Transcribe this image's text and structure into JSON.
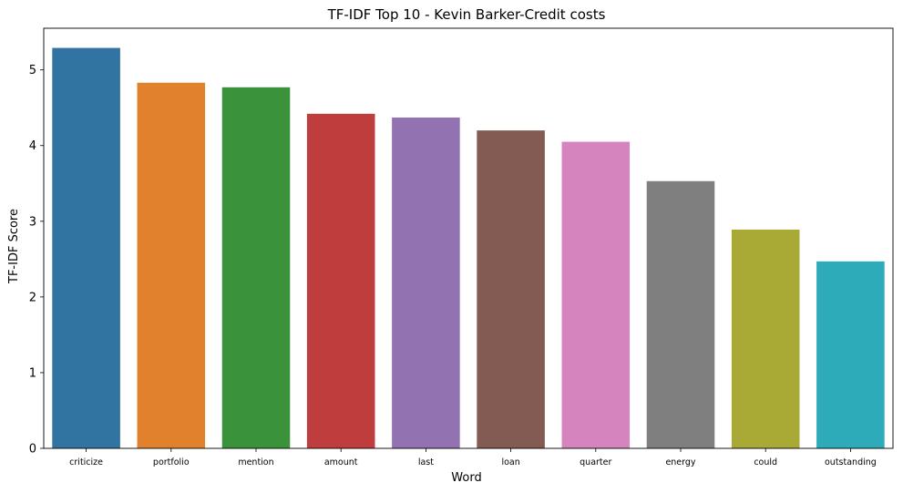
{
  "chart_data": {
    "type": "bar",
    "title": "TF-IDF Top 10 - Kevin Barker-Credit costs",
    "xlabel": "Word",
    "ylabel": "TF-IDF Score",
    "categories": [
      "criticize",
      "portfolio",
      "mention",
      "amount",
      "last",
      "loan",
      "quarter",
      "energy",
      "could",
      "outstanding"
    ],
    "values": [
      5.29,
      4.83,
      4.77,
      4.42,
      4.37,
      4.2,
      4.05,
      3.53,
      2.89,
      2.47
    ],
    "colors": [
      "#3274a1",
      "#e1812c",
      "#3a923a",
      "#c03d3e",
      "#9372b2",
      "#845b53",
      "#d684bd",
      "#7f7f7f",
      "#a9aa35",
      "#2eabb8"
    ],
    "ylim": [
      0,
      5.55
    ],
    "yticks": [
      0,
      1,
      2,
      3,
      4,
      5
    ],
    "grid": false,
    "legend": "none"
  }
}
